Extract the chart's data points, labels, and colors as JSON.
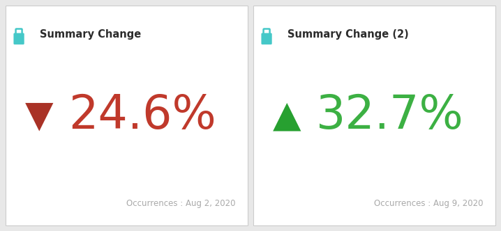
{
  "panels": [
    {
      "title": "Summary Change",
      "value": "24.6%",
      "direction": "down",
      "arrow": "▼",
      "value_color": "#c0392b",
      "arrow_color": "#a93226",
      "occurrence_label": "Occurrences : Aug 2, 2020"
    },
    {
      "title": "Summary Change (2)",
      "value": "32.7%",
      "direction": "up",
      "arrow": "▲",
      "value_color": "#3cb043",
      "arrow_color": "#27a030",
      "occurrence_label": "Occurrences : Aug 9, 2020"
    }
  ],
  "fig_bg": "#e8e8e8",
  "panel_bg": "#ffffff",
  "border_color": "#cccccc",
  "title_color": "#2c2c2c",
  "title_fontsize": 10.5,
  "lock_color": "#45c8c8",
  "occurrence_color": "#aaaaaa",
  "occurrence_fontsize": 8.5,
  "value_fontsize": 48,
  "arrow_fontsize": 38
}
